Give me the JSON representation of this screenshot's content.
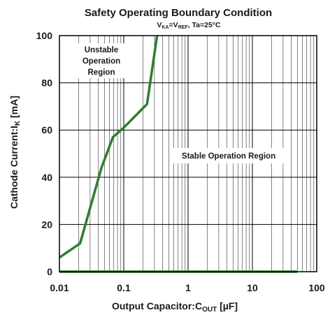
{
  "chart_data": {
    "type": "line",
    "title": "Safety Operating Boundary Condition",
    "subtitle": {
      "v1": "V",
      "v1_sub": "KA",
      "eq": "=V",
      "v2_sub": "REF",
      "rest": ", Ta=25°C"
    },
    "xlabel": {
      "main": "Output Capacitor:C",
      "sub": "OUT",
      "unit": " [µF]"
    },
    "ylabel": {
      "main": "Cathode Current:I",
      "sub": "K",
      "unit": " [mA]"
    },
    "xscale": "log",
    "xlim": [
      0.01,
      100
    ],
    "ylim": [
      0,
      100
    ],
    "x_ticks": [
      0.01,
      0.1,
      1,
      10,
      100
    ],
    "x_tick_labels": [
      "0.01",
      "0.1",
      "1",
      "10",
      "100"
    ],
    "y_ticks": [
      0,
      20,
      40,
      60,
      80,
      100
    ],
    "y_tick_labels": [
      "0",
      "20",
      "40",
      "60",
      "80",
      "100"
    ],
    "grid": true,
    "line_color": "#2e7d32",
    "series": [
      {
        "points": [
          {
            "x": 0.01,
            "y": 6
          },
          {
            "x": 0.021,
            "y": 12
          },
          {
            "x": 0.045,
            "y": 44
          },
          {
            "x": 0.068,
            "y": 57
          },
          {
            "x": 0.1,
            "y": 61
          },
          {
            "x": 0.23,
            "y": 71
          },
          {
            "x": 0.33,
            "y": 100
          }
        ]
      },
      {
        "points": [
          {
            "x": 0.01,
            "y": 0
          },
          {
            "x": 50,
            "y": 0
          }
        ]
      }
    ],
    "annotations": [
      {
        "lines": [
          "Unstable",
          "Operation",
          "Region"
        ]
      },
      {
        "lines": [
          "Stable Operation Region"
        ]
      }
    ]
  }
}
